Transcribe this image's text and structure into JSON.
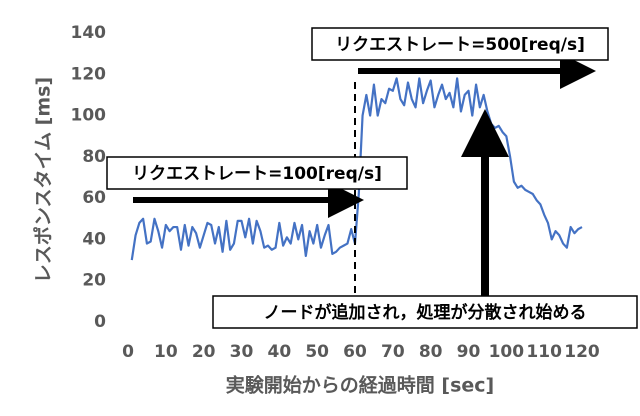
{
  "chart_data": {
    "type": "line",
    "x_label": "実験開始からの経過時間 [sec]",
    "y_label": "レスポンスタイム [ms]",
    "annotations": [
      "リクエストレート=100[req/s]",
      "リクエストレート=500[req/s]",
      "ノードが追加され，処理が分散され始める"
    ],
    "x": [
      1,
      2,
      3,
      4,
      5,
      6,
      7,
      8,
      9,
      10,
      11,
      12,
      13,
      14,
      15,
      16,
      17,
      18,
      19,
      20,
      21,
      22,
      23,
      24,
      25,
      26,
      27,
      28,
      29,
      30,
      31,
      32,
      33,
      34,
      35,
      36,
      37,
      38,
      39,
      40,
      41,
      42,
      43,
      44,
      45,
      46,
      47,
      48,
      49,
      50,
      51,
      52,
      53,
      54,
      55,
      56,
      57,
      58,
      59,
      60,
      61,
      62,
      63,
      64,
      65,
      66,
      67,
      68,
      69,
      70,
      71,
      72,
      73,
      74,
      75,
      76,
      77,
      78,
      79,
      80,
      81,
      82,
      83,
      84,
      85,
      86,
      87,
      88,
      89,
      90,
      91,
      92,
      93,
      94,
      95,
      96,
      97,
      98,
      99,
      100,
      101,
      102,
      103,
      104,
      105,
      106,
      107,
      108,
      109,
      110,
      111,
      112,
      113,
      114,
      115,
      116,
      117,
      118,
      119,
      120
    ],
    "series": [
      {
        "name": "レスポンスタイム",
        "color": "#4472c4",
        "values": [
          30,
          42,
          48,
          50,
          38,
          39,
          50,
          44,
          36,
          47,
          44,
          46,
          46,
          35,
          47,
          37,
          46,
          43,
          36,
          42,
          48,
          47,
          38,
          46,
          34,
          49,
          35,
          38,
          49,
          49,
          41,
          50,
          38,
          49,
          44,
          36,
          37,
          35,
          36,
          48,
          37,
          41,
          38,
          48,
          40,
          47,
          32,
          44,
          38,
          47,
          36,
          42,
          47,
          33,
          34,
          36,
          37,
          38,
          45,
          38,
          62,
          100,
          110,
          100,
          115,
          100,
          108,
          106,
          113,
          112,
          118,
          108,
          105,
          116,
          108,
          104,
          118,
          106,
          112,
          117,
          104,
          110,
          115,
          108,
          111,
          104,
          118,
          102,
          110,
          112,
          100,
          115,
          104,
          110,
          102,
          96,
          94,
          95,
          92,
          90,
          80,
          68,
          65,
          66,
          64,
          63,
          62,
          59,
          57,
          52,
          48,
          40,
          44,
          42,
          38,
          36,
          46,
          43,
          45,
          46
        ]
      }
    ],
    "xlim": [
      0,
      120
    ],
    "ylim": [
      0,
      140
    ],
    "xticks": [
      0,
      10,
      20,
      30,
      40,
      50,
      60,
      70,
      80,
      90,
      100,
      110,
      120
    ],
    "yticks": [
      0,
      20,
      40,
      60,
      80,
      100,
      120,
      140
    ],
    "grid": false
  }
}
